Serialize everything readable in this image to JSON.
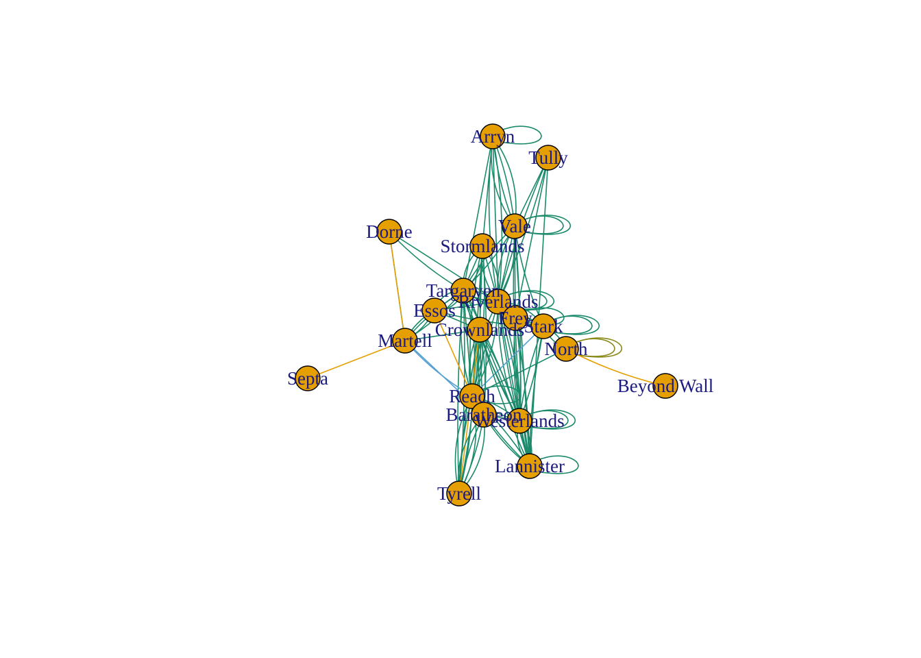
{
  "graph": {
    "colors": {
      "node_fill": "#E69F00",
      "node_stroke": "#000000",
      "label": "#1a1a80",
      "edge_green": "#1b8a6b",
      "edge_orange": "#e69f00",
      "edge_blue": "#56a0d3",
      "edge_olive": "#8a8a1b"
    },
    "nodes": [
      {
        "id": "Arryn",
        "label": "Arryn"
      },
      {
        "id": "Tully",
        "label": "Tully"
      },
      {
        "id": "Vale",
        "label": "Vale"
      },
      {
        "id": "Dorne",
        "label": "Dorne"
      },
      {
        "id": "Stormlands",
        "label": "Stormlands"
      },
      {
        "id": "Targaryen",
        "label": "Targaryen"
      },
      {
        "id": "Riverlands",
        "label": "Riverlands"
      },
      {
        "id": "Essos",
        "label": "Essos"
      },
      {
        "id": "Frey",
        "label": "Frey"
      },
      {
        "id": "Stark",
        "label": "Stark"
      },
      {
        "id": "Crownlands",
        "label": "Crownlands"
      },
      {
        "id": "Martell",
        "label": "Martell"
      },
      {
        "id": "North",
        "label": "North"
      },
      {
        "id": "Septa",
        "label": "Septa"
      },
      {
        "id": "Beyond Wall",
        "label": "Beyond Wall"
      },
      {
        "id": "Reach",
        "label": "Reach"
      },
      {
        "id": "Baratheon",
        "label": "Baratheon"
      },
      {
        "id": "Westerlands",
        "label": "Westerlands"
      },
      {
        "id": "Lannister",
        "label": "Lannister"
      },
      {
        "id": "Tyrell",
        "label": "Tyrell"
      }
    ],
    "edges": [
      {
        "source": "Arryn",
        "target": "Arryn",
        "color": "green",
        "count": 1
      },
      {
        "source": "Arryn",
        "target": "Vale",
        "color": "green",
        "count": 4
      },
      {
        "source": "Arryn",
        "target": "Stormlands",
        "color": "green",
        "count": 1
      },
      {
        "source": "Arryn",
        "target": "Riverlands",
        "color": "green",
        "count": 3
      },
      {
        "source": "Arryn",
        "target": "Targaryen",
        "color": "green",
        "count": 1
      },
      {
        "source": "Tully",
        "target": "Vale",
        "color": "green",
        "count": 1
      },
      {
        "source": "Tully",
        "target": "Riverlands",
        "color": "green",
        "count": 2
      },
      {
        "source": "Tully",
        "target": "Frey",
        "color": "green",
        "count": 1
      },
      {
        "source": "Tully",
        "target": "Lannister",
        "color": "green",
        "count": 1
      },
      {
        "source": "Vale",
        "target": "Vale",
        "color": "green",
        "count": 2
      },
      {
        "source": "Vale",
        "target": "Riverlands",
        "color": "green",
        "count": 3
      },
      {
        "source": "Vale",
        "target": "Lannister",
        "color": "green",
        "count": 1
      },
      {
        "source": "Vale",
        "target": "Westerlands",
        "color": "green",
        "count": 2
      },
      {
        "source": "Vale",
        "target": "Targaryen",
        "color": "green",
        "count": 2
      },
      {
        "source": "Vale",
        "target": "Frey",
        "color": "green",
        "count": 1
      },
      {
        "source": "Vale",
        "target": "Stark",
        "color": "green",
        "count": 1
      },
      {
        "source": "Dorne",
        "target": "Martell",
        "color": "green",
        "count": 1
      },
      {
        "source": "Dorne",
        "target": "Martell",
        "color": "orange",
        "count": 1
      },
      {
        "source": "Dorne",
        "target": "Targaryen",
        "color": "green",
        "count": 1
      },
      {
        "source": "Dorne",
        "target": "Riverlands",
        "color": "green",
        "count": 1
      },
      {
        "source": "Stormlands",
        "target": "Targaryen",
        "color": "green",
        "count": 3
      },
      {
        "source": "Stormlands",
        "target": "Riverlands",
        "color": "green",
        "count": 3
      },
      {
        "source": "Stormlands",
        "target": "Reach",
        "color": "orange",
        "count": 1
      },
      {
        "source": "Stormlands",
        "target": "Reach",
        "color": "green",
        "count": 3
      },
      {
        "source": "Stormlands",
        "target": "Baratheon",
        "color": "green",
        "count": 2
      },
      {
        "source": "Stormlands",
        "target": "Crownlands",
        "color": "green",
        "count": 1
      },
      {
        "source": "Targaryen",
        "target": "Essos",
        "color": "green",
        "count": 3
      },
      {
        "source": "Targaryen",
        "target": "Riverlands",
        "color": "green",
        "count": 2
      },
      {
        "source": "Targaryen",
        "target": "Crownlands",
        "color": "green",
        "count": 2
      },
      {
        "source": "Targaryen",
        "target": "Reach",
        "color": "orange",
        "count": 1
      },
      {
        "source": "Targaryen",
        "target": "Reach",
        "color": "green",
        "count": 3
      },
      {
        "source": "Targaryen",
        "target": "Martell",
        "color": "green",
        "count": 2
      },
      {
        "source": "Targaryen",
        "target": "Westerlands",
        "color": "green",
        "count": 2
      },
      {
        "source": "Targaryen",
        "target": "Stark",
        "color": "green",
        "count": 1
      },
      {
        "source": "Targaryen",
        "target": "Tyrell",
        "color": "green",
        "count": 2
      },
      {
        "source": "Riverlands",
        "target": "Riverlands",
        "color": "green",
        "count": 2
      },
      {
        "source": "Riverlands",
        "target": "Frey",
        "color": "green",
        "count": 2
      },
      {
        "source": "Riverlands",
        "target": "Stark",
        "color": "green",
        "count": 3
      },
      {
        "source": "Riverlands",
        "target": "Westerlands",
        "color": "green",
        "count": 3
      },
      {
        "source": "Riverlands",
        "target": "Lannister",
        "color": "green",
        "count": 2
      },
      {
        "source": "Riverlands",
        "target": "Reach",
        "color": "green",
        "count": 3
      },
      {
        "source": "Riverlands",
        "target": "Essos",
        "color": "green",
        "count": 1
      },
      {
        "source": "Essos",
        "target": "Martell",
        "color": "green",
        "count": 2
      },
      {
        "source": "Essos",
        "target": "Crownlands",
        "color": "green",
        "count": 1
      },
      {
        "source": "Essos",
        "target": "Reach",
        "color": "orange",
        "count": 1
      },
      {
        "source": "Essos",
        "target": "Stark",
        "color": "green",
        "count": 1
      },
      {
        "source": "Frey",
        "target": "Frey",
        "color": "green",
        "count": 1
      },
      {
        "source": "Frey",
        "target": "Stark",
        "color": "green",
        "count": 2
      },
      {
        "source": "Frey",
        "target": "Westerlands",
        "color": "green",
        "count": 2
      },
      {
        "source": "Frey",
        "target": "Lannister",
        "color": "green",
        "count": 2
      },
      {
        "source": "Stark",
        "target": "Stark",
        "color": "green",
        "count": 2
      },
      {
        "source": "Stark",
        "target": "North",
        "color": "green",
        "count": 2
      },
      {
        "source": "Stark",
        "target": "Reach",
        "color": "blue",
        "count": 1
      },
      {
        "source": "Stark",
        "target": "Westerlands",
        "color": "green",
        "count": 2
      },
      {
        "source": "Stark",
        "target": "Lannister",
        "color": "green",
        "count": 1
      },
      {
        "source": "Crownlands",
        "target": "Reach",
        "color": "green",
        "count": 3
      },
      {
        "source": "Crownlands",
        "target": "Baratheon",
        "color": "green",
        "count": 2
      },
      {
        "source": "Crownlands",
        "target": "Westerlands",
        "color": "green",
        "count": 2
      },
      {
        "source": "Crownlands",
        "target": "Lannister",
        "color": "green",
        "count": 2
      },
      {
        "source": "Crownlands",
        "target": "Tyrell",
        "color": "orange",
        "count": 1
      },
      {
        "source": "Crownlands",
        "target": "Tyrell",
        "color": "green",
        "count": 2
      },
      {
        "source": "Crownlands",
        "target": "Martell",
        "color": "green",
        "count": 1
      },
      {
        "source": "Martell",
        "target": "Septa",
        "color": "orange",
        "count": 1
      },
      {
        "source": "Martell",
        "target": "Reach",
        "color": "blue",
        "count": 1
      },
      {
        "source": "Martell",
        "target": "Baratheon",
        "color": "blue",
        "count": 1
      },
      {
        "source": "North",
        "target": "North",
        "color": "olive",
        "count": 2
      },
      {
        "source": "North",
        "target": "Beyond Wall",
        "color": "orange",
        "count": 1
      },
      {
        "source": "North",
        "target": "Reach",
        "color": "green",
        "count": 1
      },
      {
        "source": "Reach",
        "target": "Reach",
        "color": "green",
        "count": 1
      },
      {
        "source": "Reach",
        "target": "Baratheon",
        "color": "green",
        "count": 2
      },
      {
        "source": "Reach",
        "target": "Westerlands",
        "color": "green",
        "count": 2
      },
      {
        "source": "Reach",
        "target": "Tyrell",
        "color": "green",
        "count": 4
      },
      {
        "source": "Reach",
        "target": "Lannister",
        "color": "green",
        "count": 2
      },
      {
        "source": "Baratheon",
        "target": "Tyrell",
        "color": "green",
        "count": 4
      },
      {
        "source": "Baratheon",
        "target": "Westerlands",
        "color": "green",
        "count": 1
      },
      {
        "source": "Baratheon",
        "target": "Lannister",
        "color": "green",
        "count": 1
      },
      {
        "source": "Westerlands",
        "target": "Westerlands",
        "color": "green",
        "count": 2
      },
      {
        "source": "Westerlands",
        "target": "Lannister",
        "color": "green",
        "count": 3
      },
      {
        "source": "Lannister",
        "target": "Lannister",
        "color": "green",
        "count": 1
      }
    ]
  }
}
